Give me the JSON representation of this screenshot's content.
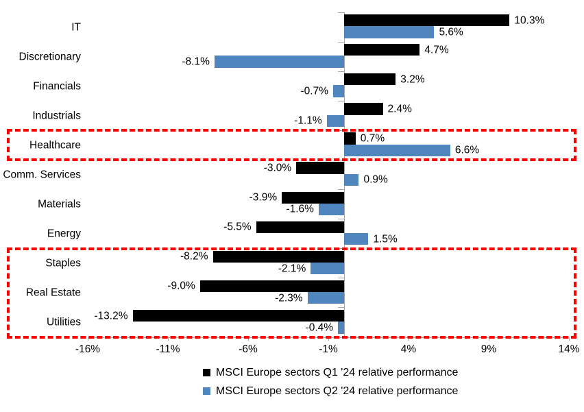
{
  "chart_data": {
    "type": "bar",
    "orientation": "horizontal",
    "title": "",
    "categories": [
      "IT",
      "Discretionary",
      "Financials",
      "Industrials",
      "Healthcare",
      "Comm. Services",
      "Materials",
      "Energy",
      "Staples",
      "Real Estate",
      "Utilities"
    ],
    "series": [
      {
        "name": "MSCI Europe sectors Q1 '24 relative performance",
        "color": "#000000",
        "values": [
          10.3,
          4.7,
          3.2,
          2.4,
          0.7,
          -3.0,
          -3.9,
          -5.5,
          -8.2,
          -9.0,
          -13.2
        ]
      },
      {
        "name": "MSCI Europe sectors Q2 '24 relative performance",
        "color": "#4f86bd",
        "values": [
          5.6,
          -8.1,
          -0.7,
          -1.1,
          6.6,
          0.9,
          -1.6,
          1.5,
          -2.1,
          -2.3,
          -0.4
        ]
      }
    ],
    "value_label_decimals": 1,
    "value_suffix": "%",
    "xlim": [
      -16,
      14
    ],
    "x_tick_values": [
      -16,
      -11,
      -6,
      -1,
      4,
      9,
      14
    ],
    "x_tick_labels": [
      "-16%",
      "-11%",
      "-6%",
      "-1%",
      "4%",
      "9%",
      "14%"
    ],
    "grid": false,
    "legend_position": "bottom",
    "axis_color": "#a6a6a6",
    "highlight_boxes": [
      {
        "from_category": "Healthcare",
        "to_category": "Healthcare",
        "from": 4,
        "to": 4,
        "color": "#ff0000",
        "style": "dashed"
      },
      {
        "from_category": "Staples",
        "to_category": "Utilities",
        "from": 8,
        "to": 10,
        "color": "#ff0000",
        "style": "dashed"
      }
    ]
  },
  "legend": {
    "items": [
      {
        "label": "MSCI Europe sectors Q1 '24 relative performance",
        "color": "#000000"
      },
      {
        "label": "MSCI Europe sectors Q2 '24 relative performance",
        "color": "#4f86bd"
      }
    ]
  }
}
